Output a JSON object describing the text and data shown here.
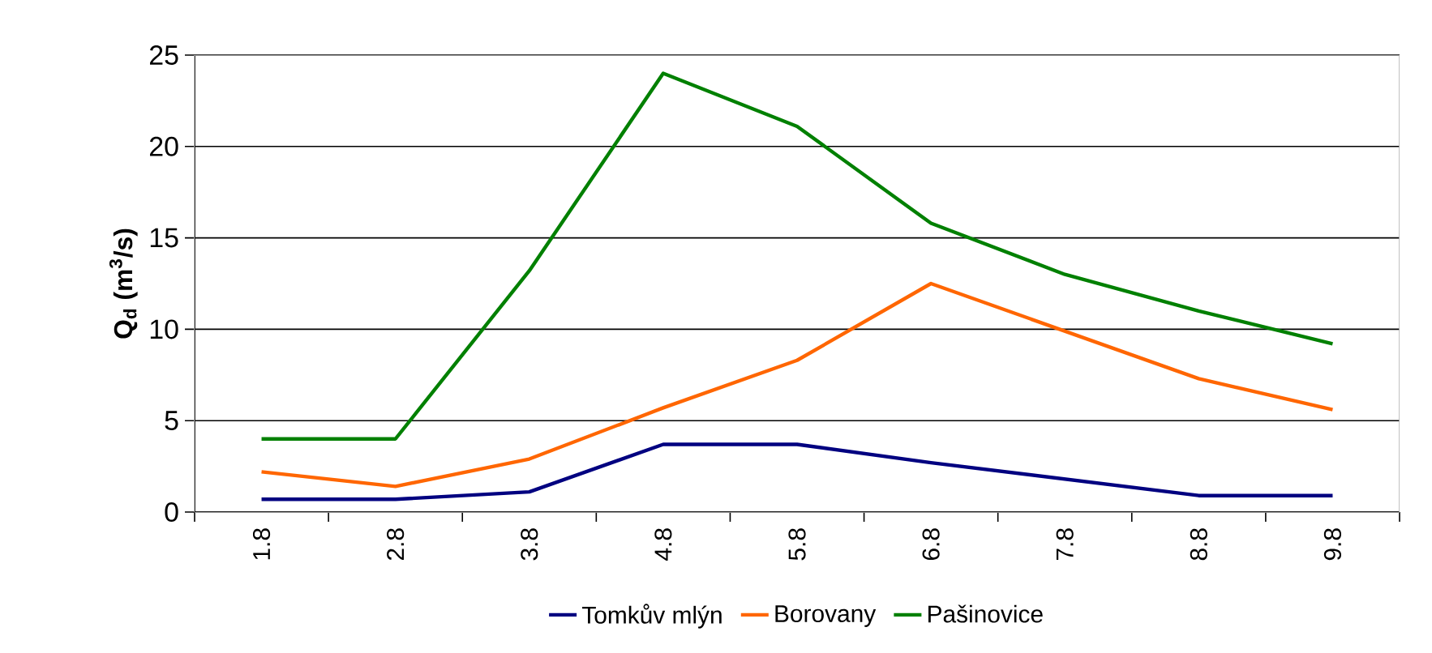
{
  "chart_data": {
    "type": "line",
    "ylabel": "Q$_{d}$ (m$^{3}$/s)",
    "categories": [
      "1.8",
      "2.8",
      "3.8",
      "4.8",
      "5.8",
      "6.8",
      "7.8",
      "8.8",
      "9.8"
    ],
    "series": [
      {
        "name": "Tomkův mlýn",
        "color": "#000080",
        "values": [
          0.7,
          0.7,
          1.1,
          3.7,
          3.7,
          2.7,
          1.8,
          0.9,
          0.9
        ]
      },
      {
        "name": "Borovany",
        "color": "#ff6600",
        "values": [
          2.2,
          1.4,
          2.9,
          5.7,
          8.3,
          12.5,
          9.9,
          7.3,
          5.6
        ]
      },
      {
        "name": "Pašinovice",
        "color": "#008000",
        "values": [
          4.0,
          4.0,
          13.2,
          24.0,
          21.1,
          15.8,
          13.0,
          11.0,
          9.2
        ]
      }
    ],
    "ylim": [
      0,
      25
    ],
    "yticks": [
      0,
      5,
      10,
      15,
      20,
      25
    ],
    "grid": "y",
    "legend": "bottom",
    "marker": "none",
    "line_style": "solid"
  }
}
